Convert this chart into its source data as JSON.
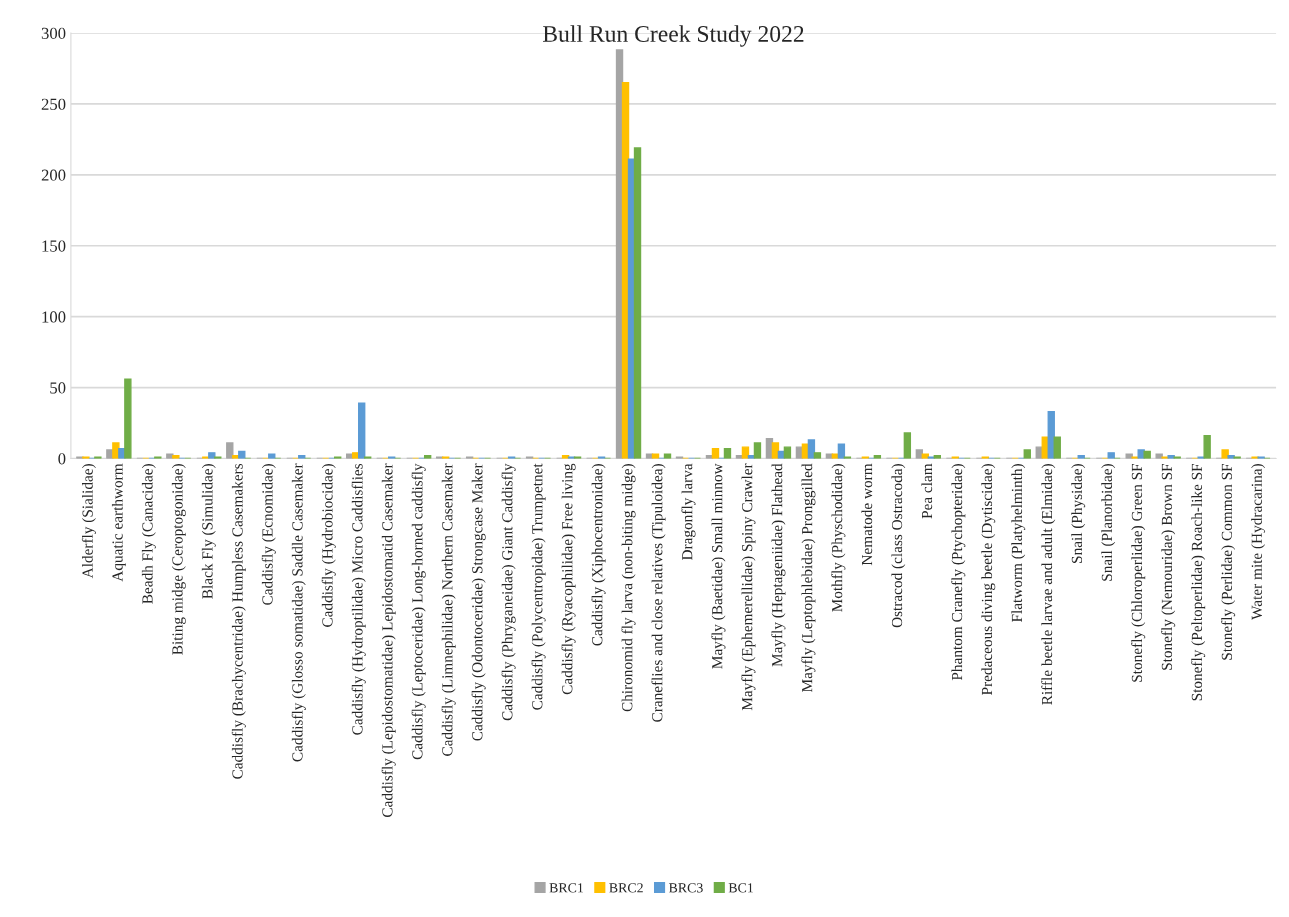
{
  "chart_data": {
    "type": "bar",
    "title": "Bull Run Creek Study 2022",
    "categories": [
      "Alderfly (Sialidae)",
      "Aquatic earthworm",
      "Beadh Fly (Canacidae)",
      "Biting midge (Ceroptogonidae)",
      "Black Fly (Simulidae)",
      "Caddisfly (Brachycentridae) Humpless Casemakers",
      "Caddisfly (Ecnomidae)",
      "Caddisfly (Glosso somatidae) Saddle Casemaker",
      "Caddisfly (Hydrobiocidae)",
      "Caddisfly (Hydroptilidae) Micro Caddisflies",
      "Caddisfly (Lepidostomatidae) Lepidostomatid Casemaker",
      "Caddisfly (Leptoceridae) Long-horned caddisfly",
      "Caddisfly (Limnephilidae) Northern Casemaker",
      "Caddisfly (Odontoceridae) Strongcase Maker",
      "Caddisfly (Phryganeidae) Giant Caddisfly",
      "Caddisfly (Polycentropidae) Trumpetnet",
      "Caddisfly (Ryacophilidae) Free living",
      "Caddisfly (Xiphocentronidae)",
      "Chironomid fly larva (non-biting midge)",
      "Craneflies and close relatives (Tipuloidea)",
      "Dragonfly larva",
      "Mayfly (Baetidae) Small minnow",
      "Mayfly (Ephemerellidae) Spiny Crawler",
      "Mayfly (Heptageniidae) Flathead",
      "Mayfly (Leptophlebidae) Pronggilled",
      "Mothfly (Physchodidae)",
      "Nematode worm",
      "Ostracod (class Ostracoda)",
      "Pea clam",
      "Phantom Cranefly (Ptychopteridae)",
      "Predaceous diving beetle (Dytiscidae)",
      "Flatworm (Platyhelminth)",
      "Riffle beetle larvae and adult (Elmidae)",
      "Snail (Physidae)",
      "Snail (Planorbidae)",
      "Stonefly (Chloroperlidae) Green SF",
      "Stonefly (Nemouridae) Brown SF",
      "Stonefly (Peltoperlidae) Roach-like SF",
      "Stonefly (Perlidae) Common SF",
      "Water mite (Hydracarina)"
    ],
    "series": [
      {
        "name": "BRC1",
        "color": "#a5a5a5",
        "values": [
          1,
          6,
          0,
          3,
          0,
          11,
          0,
          0,
          0,
          3,
          0,
          0,
          1,
          1,
          0,
          1,
          0,
          0,
          288,
          3,
          1,
          2,
          2,
          14,
          8,
          3,
          0,
          0,
          6,
          0,
          0,
          0,
          8,
          0,
          0,
          3,
          3,
          0,
          0,
          0
        ]
      },
      {
        "name": "BRC2",
        "color": "#ffc000",
        "values": [
          1,
          11,
          0,
          2,
          1,
          2,
          0,
          0,
          0,
          4,
          0,
          0,
          1,
          0,
          0,
          0,
          2,
          0,
          265,
          3,
          0,
          7,
          8,
          11,
          10,
          3,
          1,
          0,
          3,
          1,
          1,
          0,
          15,
          0,
          0,
          1,
          1,
          0,
          6,
          1
        ]
      },
      {
        "name": "BRC3",
        "color": "#5b9bd5",
        "values": [
          0,
          7,
          0,
          0,
          4,
          5,
          3,
          2,
          0,
          39,
          1,
          0,
          0,
          0,
          1,
          0,
          1,
          1,
          211,
          0,
          0,
          0,
          2,
          5,
          13,
          10,
          0,
          0,
          1,
          0,
          0,
          0,
          33,
          2,
          4,
          6,
          2,
          1,
          2,
          1
        ]
      },
      {
        "name": "BC1",
        "color": "#70ad47",
        "values": [
          1,
          56,
          1,
          0,
          1,
          0,
          0,
          0,
          1,
          1,
          0,
          2,
          0,
          0,
          0,
          0,
          1,
          0,
          219,
          3,
          0,
          7,
          11,
          8,
          4,
          1,
          2,
          18,
          2,
          0,
          0,
          6,
          15,
          0,
          0,
          5,
          1,
          16,
          1,
          0
        ]
      }
    ],
    "ylim": [
      0,
      300
    ],
    "yticks": [
      0,
      50,
      100,
      150,
      200,
      250,
      300
    ],
    "grid": "y",
    "legend": "bottom"
  }
}
